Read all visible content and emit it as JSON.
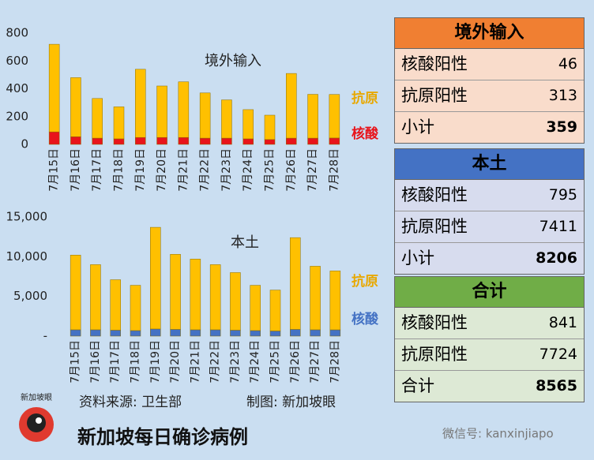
{
  "chart_data": [
    {
      "type": "bar",
      "stacked": true,
      "title": "境外输入",
      "categories": [
        "7月15日",
        "7月16日",
        "7月17日",
        "7月18日",
        "7月19日",
        "7月20日",
        "7月21日",
        "7月22日",
        "7月23日",
        "7月24日",
        "7月25日",
        "7月26日",
        "7月27日",
        "7月28日"
      ],
      "series": [
        {
          "name": "核酸",
          "color": "#e8141b",
          "values": [
            90,
            55,
            45,
            40,
            50,
            50,
            50,
            45,
            45,
            40,
            35,
            45,
            45,
            46
          ]
        },
        {
          "name": "抗原",
          "color": "#ffc000",
          "values": [
            630,
            425,
            285,
            230,
            490,
            370,
            400,
            325,
            275,
            210,
            175,
            465,
            315,
            313
          ]
        }
      ],
      "ylim": [
        0,
        800
      ],
      "yticks": [
        0,
        200,
        400,
        600,
        800
      ]
    },
    {
      "type": "bar",
      "stacked": true,
      "title": "本土",
      "categories": [
        "7月15日",
        "7月16日",
        "7月17日",
        "7月18日",
        "7月19日",
        "7月20日",
        "7月21日",
        "7月22日",
        "7月23日",
        "7月24日",
        "7月25日",
        "7月26日",
        "7月27日",
        "7月28日"
      ],
      "series": [
        {
          "name": "核酸",
          "color": "#4472c4",
          "values": [
            800,
            800,
            750,
            700,
            900,
            850,
            800,
            800,
            750,
            700,
            650,
            850,
            800,
            795
          ]
        },
        {
          "name": "抗原",
          "color": "#ffc000",
          "values": [
            9400,
            8200,
            6350,
            5700,
            12800,
            9450,
            8900,
            8200,
            7250,
            5700,
            5150,
            11550,
            8000,
            7411
          ]
        }
      ],
      "ylim": [
        0,
        15000
      ],
      "yticks": [
        {
          "value": 0,
          "label": "-"
        },
        {
          "value": 5000,
          "label": "5,000"
        },
        {
          "value": 10000,
          "label": "10,000"
        },
        {
          "value": 15000,
          "label": "15,000"
        }
      ]
    }
  ],
  "tables": [
    {
      "title": "境外输入",
      "header_color": "#f07f32",
      "body_color": "#f9dccb",
      "rows": [
        [
          "核酸阳性",
          "46"
        ],
        [
          "抗原阳性",
          "313"
        ],
        [
          "小计",
          "359"
        ]
      ]
    },
    {
      "title": "本土",
      "header_color": "#4472c4",
      "body_color": "#d7dcee",
      "rows": [
        [
          "核酸阳性",
          "795"
        ],
        [
          "抗原阳性",
          "7411"
        ],
        [
          "小计",
          "8206"
        ]
      ]
    },
    {
      "title": "合计",
      "header_color": "#70ad47",
      "body_color": "#dde9d5",
      "rows": [
        [
          "核酸阳性",
          "841"
        ],
        [
          "抗原阳性",
          "7724"
        ],
        [
          "合计",
          "8565"
        ]
      ]
    }
  ],
  "footer": {
    "logo": "新加坡眼",
    "source": "资料来源:  卫生部",
    "credit": "制图:  新加坡眼",
    "title": "新加坡每日确诊病例",
    "wechat": "微信号: kanxinjiapo"
  }
}
